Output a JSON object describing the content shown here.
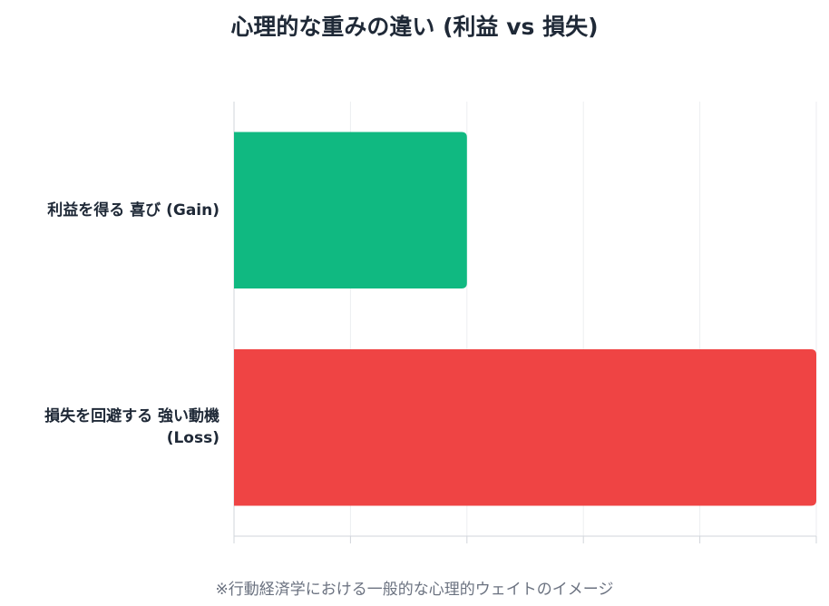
{
  "chart_data": {
    "type": "bar",
    "orientation": "horizontal",
    "title": "心理的な重みの違い (利益 vs 損失)",
    "categories": [
      "利益を得る 喜び (Gain)",
      "損失を回避する 強い動機\n(Loss)"
    ],
    "values": [
      1.0,
      2.5
    ],
    "colors": [
      "#10b981",
      "#ef4444"
    ],
    "xlim": [
      0,
      2.5
    ],
    "grid": true,
    "tick_labels_visible": false,
    "footnote": "※行動経済学における一般的な心理的ウェイトのイメージ"
  }
}
